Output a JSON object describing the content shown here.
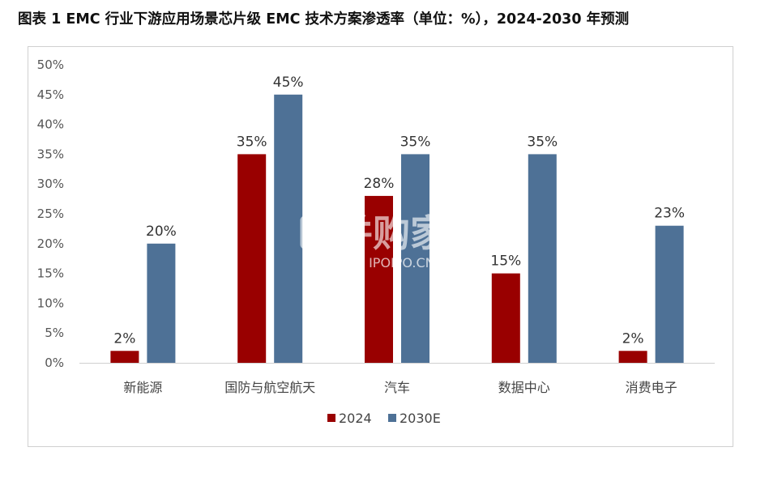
{
  "title": "图表 1 EMC 行业下游应用场景芯片级 EMC 技术方案渗透率（单位：%），2024-2030 年预测",
  "watermark": {
    "main": "并购家",
    "sub": "行业报告 IPOIPO.CN"
  },
  "chart_data": {
    "type": "bar",
    "categories": [
      "新能源",
      "国防与航空航天",
      "汽车",
      "数据中心",
      "消费电子"
    ],
    "series": [
      {
        "name": "2024",
        "values": [
          2,
          35,
          28,
          15,
          2
        ],
        "color": "#990000"
      },
      {
        "name": "2030E",
        "values": [
          20,
          45,
          35,
          35,
          23
        ],
        "color": "#4e7196"
      }
    ],
    "ylim": [
      0,
      50
    ],
    "yticks": [
      "0%",
      "5%",
      "10%",
      "15%",
      "20%",
      "25%",
      "30%",
      "35%",
      "40%",
      "45%",
      "50%"
    ],
    "ytick_values": [
      0,
      5,
      10,
      15,
      20,
      25,
      30,
      35,
      40,
      45,
      50
    ],
    "value_suffix": "%",
    "grid": false,
    "legend_position": "bottom"
  }
}
